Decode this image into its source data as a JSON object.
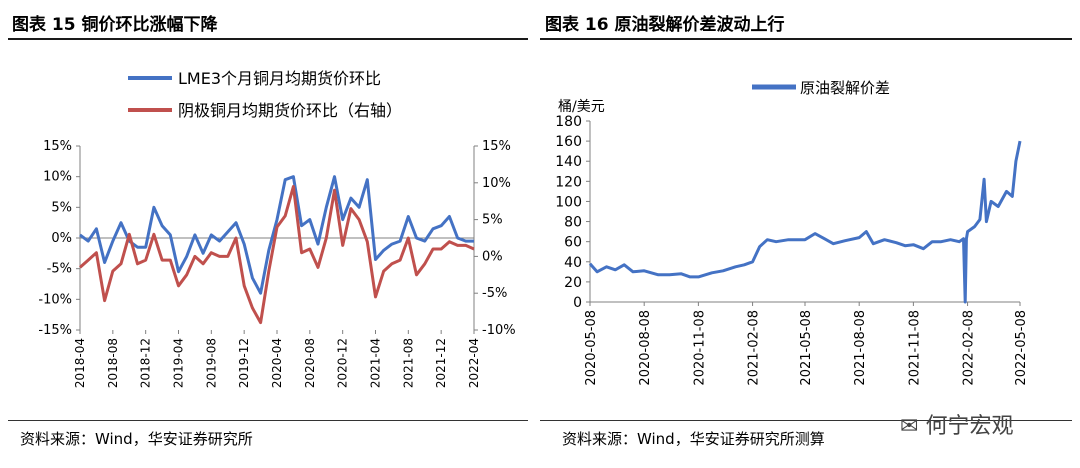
{
  "left": {
    "title": "图表 15 铜价环比涨幅下降",
    "source": "资料来源：Wind，华安证券研究所",
    "chart_data": {
      "type": "line",
      "title": "铜价环比涨幅下降",
      "x": [
        "2018-04",
        "2018-05",
        "2018-06",
        "2018-07",
        "2018-08",
        "2018-09",
        "2018-10",
        "2018-11",
        "2018-12",
        "2019-01",
        "2019-02",
        "2019-03",
        "2019-04",
        "2019-05",
        "2019-06",
        "2019-07",
        "2019-08",
        "2019-09",
        "2019-10",
        "2019-11",
        "2019-12",
        "2020-01",
        "2020-02",
        "2020-03",
        "2020-04",
        "2020-05",
        "2020-06",
        "2020-07",
        "2020-08",
        "2020-09",
        "2020-10",
        "2020-11",
        "2020-12",
        "2021-01",
        "2021-02",
        "2021-03",
        "2021-04",
        "2021-05",
        "2021-06",
        "2021-07",
        "2021-08",
        "2021-09",
        "2021-10",
        "2021-11",
        "2021-12",
        "2022-01",
        "2022-02",
        "2022-03",
        "2022-04"
      ],
      "xticks": [
        "2018-04",
        "2018-08",
        "2018-12",
        "2019-04",
        "2019-08",
        "2019-12",
        "2020-04",
        "2020-08",
        "2020-12",
        "2021-04",
        "2021-08",
        "2021-12",
        "2022-04"
      ],
      "series": [
        {
          "name": "LME3个月铜月均期货价环比",
          "axis": "left",
          "color": "#4472C4",
          "values": [
            0.5,
            -0.5,
            1.5,
            -4.0,
            -0.5,
            2.5,
            -0.5,
            -1.5,
            -1.5,
            5.0,
            2.0,
            0.5,
            -5.5,
            -3.0,
            0.5,
            -2.5,
            0.5,
            -0.5,
            1.0,
            2.5,
            -1.0,
            -6.5,
            -9.0,
            -2.0,
            3.0,
            9.5,
            10.0,
            2.0,
            3.0,
            -1.0,
            5.0,
            10.0,
            3.0,
            6.5,
            5.0,
            9.5,
            -3.5,
            -2.0,
            -1.0,
            -0.5,
            3.5,
            0.0,
            -0.5,
            1.5,
            2.0,
            3.5,
            0.0,
            -0.5,
            -0.5
          ]
        },
        {
          "name": "阴极铜月均期货价环比（右轴）",
          "axis": "right",
          "color": "#C0504D",
          "values": [
            -1.5,
            -0.5,
            0.5,
            -6.0,
            -2.0,
            -1.0,
            3.0,
            -1.0,
            -0.5,
            3.0,
            -0.5,
            -0.5,
            -4.0,
            -2.5,
            0.0,
            -1.0,
            0.5,
            0.0,
            0.0,
            2.5,
            -4.0,
            -7.0,
            -9.0,
            -2.0,
            4.0,
            5.5,
            9.5,
            0.5,
            1.0,
            -1.5,
            2.5,
            9.0,
            1.5,
            6.5,
            5.0,
            2.0,
            -5.5,
            -2.0,
            -1.0,
            -0.5,
            2.5,
            -2.5,
            -1.0,
            1.0,
            1.0,
            2.0,
            1.5,
            1.5,
            1.0
          ]
        }
      ],
      "y_left": {
        "ylim": [
          -15,
          15
        ],
        "ticks": [
          -15,
          -10,
          -5,
          0,
          5,
          10,
          15
        ],
        "labels": [
          "-15%",
          "-10%",
          "-5%",
          "0%",
          "5%",
          "10%",
          "15%"
        ]
      },
      "y_right": {
        "ylim": [
          -10,
          15
        ],
        "ticks": [
          -10,
          -5,
          0,
          5,
          10,
          15
        ],
        "labels": [
          "-10%",
          "-5%",
          "0%",
          "5%",
          "10%",
          "15%"
        ]
      },
      "legend_position": "top"
    }
  },
  "right": {
    "title": "图表 16 原油裂解价差波动上行",
    "source": "资料来源：Wind，华安证券研究所测算",
    "watermark": "何宁宏观",
    "chart_data": {
      "type": "line",
      "title": "原油裂解价差波动上行",
      "ylabel": "桶/美元",
      "ylim": [
        0,
        180
      ],
      "yticks": [
        0,
        20,
        40,
        60,
        80,
        100,
        120,
        140,
        160,
        180
      ],
      "xticks": [
        "2020-05-08",
        "2020-08-08",
        "2020-11-08",
        "2021-02-08",
        "2021-05-08",
        "2021-08-08",
        "2021-11-08",
        "2022-02-08",
        "2022-05-08"
      ],
      "series": [
        {
          "name": "原油裂解价差",
          "color": "#4472C4",
          "points": [
            [
              "2020-05-08",
              38
            ],
            [
              "2020-05-20",
              30
            ],
            [
              "2020-06-05",
              35
            ],
            [
              "2020-06-20",
              32
            ],
            [
              "2020-07-05",
              37
            ],
            [
              "2020-07-20",
              30
            ],
            [
              "2020-08-08",
              31
            ],
            [
              "2020-09-01",
              27
            ],
            [
              "2020-09-20",
              27
            ],
            [
              "2020-10-10",
              28
            ],
            [
              "2020-10-25",
              25
            ],
            [
              "2020-11-08",
              25
            ],
            [
              "2020-12-01",
              29
            ],
            [
              "2020-12-20",
              31
            ],
            [
              "2021-01-10",
              35
            ],
            [
              "2021-01-25",
              37
            ],
            [
              "2021-02-08",
              40
            ],
            [
              "2021-02-20",
              55
            ],
            [
              "2021-03-05",
              62
            ],
            [
              "2021-03-20",
              60
            ],
            [
              "2021-04-10",
              62
            ],
            [
              "2021-05-08",
              62
            ],
            [
              "2021-05-25",
              68
            ],
            [
              "2021-06-10",
              63
            ],
            [
              "2021-06-25",
              58
            ],
            [
              "2021-07-15",
              61
            ],
            [
              "2021-08-08",
              64
            ],
            [
              "2021-08-20",
              70
            ],
            [
              "2021-09-01",
              58
            ],
            [
              "2021-09-20",
              62
            ],
            [
              "2021-10-10",
              59
            ],
            [
              "2021-10-25",
              56
            ],
            [
              "2021-11-08",
              57
            ],
            [
              "2021-11-25",
              53
            ],
            [
              "2021-12-10",
              60
            ],
            [
              "2021-12-25",
              60
            ],
            [
              "2022-01-10",
              62
            ],
            [
              "2022-01-25",
              60
            ],
            [
              "2022-02-01",
              63
            ],
            [
              "2022-02-04",
              0
            ],
            [
              "2022-02-06",
              63
            ],
            [
              "2022-02-08",
              70
            ],
            [
              "2022-02-20",
              75
            ],
            [
              "2022-03-01",
              82
            ],
            [
              "2022-03-08",
              122
            ],
            [
              "2022-03-12",
              80
            ],
            [
              "2022-03-20",
              100
            ],
            [
              "2022-04-01",
              95
            ],
            [
              "2022-04-15",
              110
            ],
            [
              "2022-04-25",
              105
            ],
            [
              "2022-05-01",
              140
            ],
            [
              "2022-05-08",
              160
            ]
          ]
        }
      ],
      "legend_position": "top"
    }
  }
}
